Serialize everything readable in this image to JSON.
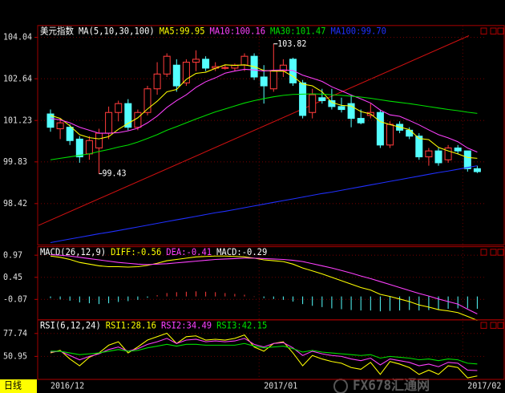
{
  "chart_data": [
    {
      "type": "candlestick",
      "title": "美元指数",
      "indicator": "MA(5,10,30,100)",
      "period": "日线",
      "watermark": "FX678汇通网",
      "categories": [
        "2016/12",
        null,
        null,
        null,
        null,
        null,
        null,
        null,
        null,
        null,
        null,
        null,
        null,
        null,
        null,
        null,
        null,
        null,
        null,
        null,
        null,
        null,
        "2017/01",
        null,
        null,
        null,
        null,
        null,
        null,
        null,
        null,
        null,
        null,
        null,
        null,
        null,
        null,
        null,
        null,
        null,
        null,
        null,
        null,
        "2017/02",
        null
      ],
      "open": [
        101.45,
        100.95,
        101.0,
        100.6,
        100.1,
        100.3,
        100.8,
        101.5,
        101.8,
        101.0,
        101.5,
        102.3,
        102.8,
        103.1,
        102.5,
        103.2,
        103.3,
        103.0,
        103.0,
        103.0,
        103.1,
        103.4,
        102.7,
        102.3,
        102.9,
        103.3,
        102.5,
        101.5,
        102.0,
        101.9,
        101.7,
        101.8,
        101.3,
        101.4,
        101.5,
        100.4,
        101.1,
        100.9,
        100.7,
        100.0,
        100.2,
        99.9,
        100.3,
        100.2,
        99.6
      ],
      "high": [
        101.6,
        101.3,
        101.1,
        100.7,
        100.7,
        100.95,
        101.7,
        101.9,
        101.95,
        101.6,
        102.4,
        103.2,
        103.5,
        103.3,
        103.3,
        103.6,
        103.4,
        103.2,
        103.1,
        103.15,
        103.5,
        103.5,
        103.1,
        103.82,
        103.3,
        103.35,
        102.6,
        102.3,
        102.3,
        102.3,
        102.0,
        102.1,
        101.6,
        101.8,
        101.6,
        101.2,
        101.2,
        101.0,
        100.8,
        100.3,
        100.3,
        100.4,
        100.4,
        100.2,
        99.7
      ],
      "low": [
        100.85,
        100.6,
        100.4,
        99.8,
        99.9,
        99.43,
        100.6,
        101.2,
        100.9,
        100.9,
        101.4,
        102.1,
        102.7,
        102.2,
        102.4,
        102.9,
        102.9,
        102.9,
        102.95,
        102.9,
        102.9,
        102.6,
        101.8,
        102.2,
        102.7,
        102.4,
        101.3,
        101.3,
        101.8,
        101.6,
        101.5,
        101.0,
        101.1,
        101.3,
        100.3,
        100.3,
        100.8,
        100.6,
        99.9,
        99.7,
        99.7,
        99.8,
        100.1,
        99.5,
        99.45
      ],
      "close": [
        101.0,
        101.15,
        100.55,
        100.0,
        100.55,
        100.8,
        101.5,
        101.8,
        101.0,
        101.5,
        102.3,
        102.8,
        103.4,
        102.4,
        103.2,
        103.3,
        103.0,
        103.05,
        103.02,
        103.1,
        103.4,
        102.7,
        102.4,
        102.9,
        103.1,
        102.5,
        101.4,
        102.1,
        101.9,
        101.7,
        101.6,
        101.3,
        101.15,
        101.5,
        100.4,
        101.1,
        100.9,
        100.7,
        100.0,
        100.2,
        99.8,
        100.3,
        100.2,
        99.6,
        99.5
      ],
      "up_color": "#ff3b3b",
      "down_color": "#54ffff",
      "annotations": [
        "103.82",
        "99.43"
      ],
      "series": [
        {
          "name": "MA5:99.95",
          "color": "#ffff00",
          "values": [
            101.4,
            101.3,
            101.05,
            100.75,
            100.65,
            100.61,
            100.68,
            100.93,
            101.13,
            101.32,
            101.62,
            101.88,
            102.2,
            102.28,
            102.62,
            102.82,
            102.86,
            102.99,
            103.11,
            103.09,
            103.11,
            103.05,
            102.92,
            102.9,
            102.9,
            102.72,
            102.46,
            102.4,
            102.2,
            101.84,
            101.74,
            101.72,
            101.53,
            101.45,
            101.19,
            101.09,
            101.01,
            100.92,
            100.62,
            100.58,
            100.32,
            100.2,
            100.1,
            99.98,
            99.95
          ]
        },
        {
          "name": "MA10:100.16",
          "color": "#ff40ff",
          "values": [
            101.3,
            101.25,
            101.15,
            101.0,
            100.9,
            100.8,
            100.8,
            100.82,
            100.88,
            100.97,
            101.15,
            101.38,
            101.67,
            101.9,
            102.1,
            102.35,
            102.54,
            102.67,
            102.83,
            102.9,
            102.96,
            102.94,
            102.9,
            102.93,
            102.94,
            102.92,
            102.76,
            102.66,
            102.55,
            102.37,
            102.23,
            102.09,
            101.96,
            101.82,
            101.58,
            101.42,
            101.37,
            101.23,
            101.08,
            100.91,
            100.75,
            100.64,
            100.51,
            100.3,
            100.16
          ]
        },
        {
          "name": "MA30:101.47",
          "color": "#00e000",
          "values": [
            99.9,
            99.95,
            100.0,
            100.05,
            100.1,
            100.18,
            100.25,
            100.33,
            100.4,
            100.5,
            100.62,
            100.75,
            100.9,
            101.02,
            101.15,
            101.28,
            101.4,
            101.52,
            101.62,
            101.72,
            101.82,
            101.9,
            101.97,
            102.03,
            102.08,
            102.11,
            102.12,
            102.13,
            102.12,
            102.1,
            102.08,
            102.05,
            102.02,
            101.98,
            101.93,
            101.88,
            101.84,
            101.8,
            101.75,
            101.7,
            101.65,
            101.6,
            101.56,
            101.51,
            101.47
          ]
        },
        {
          "name": "MA100:99.70",
          "color": "#2030ff",
          "values": [
            97.1,
            97.16,
            97.22,
            97.28,
            97.34,
            97.4,
            97.45,
            97.51,
            97.57,
            97.63,
            97.69,
            97.75,
            97.81,
            97.87,
            97.93,
            97.99,
            98.05,
            98.11,
            98.16,
            98.22,
            98.28,
            98.34,
            98.4,
            98.46,
            98.52,
            98.58,
            98.64,
            98.7,
            98.76,
            98.81,
            98.87,
            98.93,
            98.99,
            99.05,
            99.11,
            99.17,
            99.23,
            99.29,
            99.35,
            99.41,
            99.47,
            99.52,
            99.58,
            99.64,
            99.7
          ]
        }
      ],
      "ylim": [
        97.02,
        104.44
      ],
      "yticks": [
        104.04,
        102.64,
        101.23,
        99.83,
        98.42
      ],
      "grid": true
    },
    {
      "type": "macd",
      "title": "MACD(26,12,9)",
      "series": [
        {
          "name": "DIFF:-0.56",
          "color": "#ffff00",
          "values": [
            0.95,
            0.92,
            0.87,
            0.8,
            0.76,
            0.72,
            0.7,
            0.7,
            0.69,
            0.7,
            0.73,
            0.78,
            0.84,
            0.87,
            0.9,
            0.93,
            0.94,
            0.95,
            0.95,
            0.94,
            0.93,
            0.9,
            0.86,
            0.84,
            0.82,
            0.76,
            0.67,
            0.6,
            0.53,
            0.45,
            0.37,
            0.29,
            0.21,
            0.15,
            0.05,
            0.0,
            -0.06,
            -0.12,
            -0.2,
            -0.25,
            -0.31,
            -0.34,
            -0.38,
            -0.47,
            -0.56
          ]
        },
        {
          "name": "DEA:-0.41",
          "color": "#ff40ff",
          "values": [
            0.98,
            0.97,
            0.95,
            0.92,
            0.89,
            0.86,
            0.83,
            0.8,
            0.78,
            0.76,
            0.75,
            0.76,
            0.77,
            0.79,
            0.81,
            0.83,
            0.85,
            0.87,
            0.88,
            0.89,
            0.9,
            0.9,
            0.89,
            0.88,
            0.87,
            0.85,
            0.82,
            0.77,
            0.72,
            0.67,
            0.61,
            0.55,
            0.48,
            0.42,
            0.35,
            0.28,
            0.21,
            0.14,
            0.07,
            0.01,
            -0.06,
            -0.12,
            -0.18,
            -0.3,
            -0.41
          ]
        }
      ],
      "histogram": {
        "name": "MACD:-0.29",
        "up_color": "#ff3b3b",
        "down_color": "#54ffff",
        "values": [
          -0.04,
          -0.07,
          -0.1,
          -0.14,
          -0.16,
          -0.18,
          -0.16,
          -0.13,
          -0.11,
          -0.08,
          -0.03,
          0.03,
          0.08,
          0.1,
          0.11,
          0.12,
          0.11,
          0.1,
          0.08,
          0.06,
          0.04,
          0.0,
          -0.04,
          -0.06,
          -0.08,
          -0.12,
          -0.18,
          -0.22,
          -0.25,
          -0.28,
          -0.3,
          -0.32,
          -0.33,
          -0.33,
          -0.35,
          -0.34,
          -0.33,
          -0.32,
          -0.33,
          -0.32,
          -0.31,
          -0.29,
          -0.28,
          -0.28,
          -0.29
        ]
      },
      "ylim": [
        -0.55,
        1.17
      ],
      "yticks": [
        0.97,
        0.45,
        -0.07
      ],
      "grid": true
    },
    {
      "type": "line",
      "title": "RSI(6,12,24)",
      "series": [
        {
          "name": "RSI1:28.16",
          "color": "#ffff00",
          "values": [
            55,
            58,
            48,
            40,
            50,
            55,
            64,
            68,
            55,
            62,
            70,
            74,
            78,
            66,
            74,
            75,
            70,
            71,
            70,
            72,
            76,
            62,
            57,
            66,
            68,
            55,
            40,
            52,
            48,
            45,
            43,
            38,
            36,
            44,
            30,
            45,
            42,
            38,
            30,
            35,
            30,
            40,
            38,
            26,
            28.16
          ]
        },
        {
          "name": "RSI2:34.49",
          "color": "#ff40ff",
          "values": [
            56,
            57,
            52,
            47,
            51,
            54,
            59,
            62,
            57,
            60,
            65,
            68,
            72,
            66,
            70,
            71,
            68,
            69,
            68,
            69,
            72,
            65,
            62,
            66,
            67,
            61,
            52,
            57,
            54,
            52,
            51,
            48,
            46,
            49,
            41,
            48,
            46,
            44,
            40,
            42,
            39,
            44,
            43,
            35,
            34.49
          ]
        },
        {
          "name": "RSI3:42.15",
          "color": "#00e000",
          "values": [
            57,
            57,
            55,
            53,
            54,
            55,
            57,
            59,
            57,
            58,
            61,
            63,
            65,
            63,
            65,
            65,
            64,
            64,
            64,
            64,
            66,
            63,
            61,
            62,
            63,
            60,
            56,
            58,
            56,
            55,
            54,
            53,
            52,
            53,
            49,
            51,
            50,
            49,
            47,
            48,
            46,
            48,
            47,
            43,
            42.15
          ]
        }
      ],
      "ylim": [
        24.17,
        93.61
      ],
      "yticks": [
        77.74,
        50.95
      ],
      "grid": true
    }
  ]
}
